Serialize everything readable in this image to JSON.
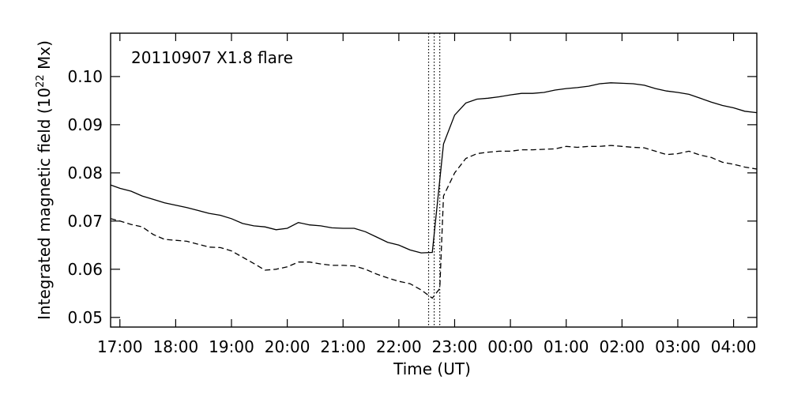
{
  "chart_data": {
    "type": "line",
    "title": "",
    "annotation": "20110907 X1.8 flare",
    "xlabel": "Time (UT)",
    "ylabel_prefix": "Integrated magnetic field (10",
    "ylabel_exp": "22",
    "ylabel_suffix": " Mx)",
    "xlim": [
      "2011-09-07 16:50",
      "2011-09-08 04:25"
    ],
    "ylim": [
      0.048,
      0.109
    ],
    "x_ticks": [
      "2011-09-07 17:00",
      "2011-09-07 18:00",
      "2011-09-07 19:00",
      "2011-09-07 20:00",
      "2011-09-07 21:00",
      "2011-09-07 22:00",
      "2011-09-07 23:00",
      "2011-09-08 00:00",
      "2011-09-08 01:00",
      "2011-09-08 02:00",
      "2011-09-08 03:00",
      "2011-09-08 04:00"
    ],
    "x_tick_labels": [
      "17:00",
      "18:00",
      "19:00",
      "20:00",
      "21:00",
      "22:00",
      "23:00",
      "00:00",
      "01:00",
      "02:00",
      "03:00",
      "04:00"
    ],
    "y_ticks": [
      0.05,
      0.06,
      0.07,
      0.08,
      0.09,
      0.1
    ],
    "y_tick_labels": [
      "0.05",
      "0.06",
      "0.07",
      "0.08",
      "0.09",
      "0.10"
    ],
    "grid": false,
    "vertical_markers": [
      "2011-09-07 22:32",
      "2011-09-07 22:38",
      "2011-09-07 22:44"
    ],
    "series": [
      {
        "style": "solid",
        "x": [
          "2011-09-07 16:50",
          "2011-09-07 17:00",
          "2011-09-07 17:12",
          "2011-09-07 17:24",
          "2011-09-07 17:36",
          "2011-09-07 17:48",
          "2011-09-07 18:00",
          "2011-09-07 18:12",
          "2011-09-07 18:24",
          "2011-09-07 18:36",
          "2011-09-07 18:48",
          "2011-09-07 19:00",
          "2011-09-07 19:12",
          "2011-09-07 19:24",
          "2011-09-07 19:36",
          "2011-09-07 19:48",
          "2011-09-07 20:00",
          "2011-09-07 20:12",
          "2011-09-07 20:24",
          "2011-09-07 20:36",
          "2011-09-07 20:48",
          "2011-09-07 21:00",
          "2011-09-07 21:12",
          "2011-09-07 21:24",
          "2011-09-07 21:36",
          "2011-09-07 21:48",
          "2011-09-07 22:00",
          "2011-09-07 22:12",
          "2011-09-07 22:24",
          "2011-09-07 22:36",
          "2011-09-07 22:48",
          "2011-09-07 23:00",
          "2011-09-07 23:12",
          "2011-09-07 23:24",
          "2011-09-07 23:36",
          "2011-09-07 23:48",
          "2011-09-08 00:00",
          "2011-09-08 00:12",
          "2011-09-08 00:24",
          "2011-09-08 00:36",
          "2011-09-08 00:48",
          "2011-09-08 01:00",
          "2011-09-08 01:12",
          "2011-09-08 01:24",
          "2011-09-08 01:36",
          "2011-09-08 01:48",
          "2011-09-08 02:00",
          "2011-09-08 02:12",
          "2011-09-08 02:24",
          "2011-09-08 02:36",
          "2011-09-08 02:48",
          "2011-09-08 03:00",
          "2011-09-08 03:12",
          "2011-09-08 03:24",
          "2011-09-08 03:36",
          "2011-09-08 03:48",
          "2011-09-08 04:00",
          "2011-09-08 04:12",
          "2011-09-08 04:25"
        ],
        "y": [
          0.0775,
          0.0768,
          0.0762,
          0.0752,
          0.0745,
          0.0738,
          0.0733,
          0.0728,
          0.0722,
          0.0716,
          0.0712,
          0.0705,
          0.0695,
          0.069,
          0.0688,
          0.0682,
          0.0685,
          0.0697,
          0.0692,
          0.069,
          0.0686,
          0.0685,
          0.0685,
          0.0678,
          0.0667,
          0.0656,
          0.065,
          0.064,
          0.0634,
          0.0635,
          0.086,
          0.092,
          0.0945,
          0.0953,
          0.0955,
          0.0958,
          0.0962,
          0.0965,
          0.0965,
          0.0967,
          0.0972,
          0.0975,
          0.0977,
          0.098,
          0.0985,
          0.0987,
          0.0986,
          0.0985,
          0.0982,
          0.0975,
          0.097,
          0.0967,
          0.0963,
          0.0955,
          0.0947,
          0.094,
          0.0935,
          0.0928,
          0.0925
        ]
      },
      {
        "style": "dashed",
        "x": [
          "2011-09-07 16:50",
          "2011-09-07 17:00",
          "2011-09-07 17:12",
          "2011-09-07 17:24",
          "2011-09-07 17:36",
          "2011-09-07 17:48",
          "2011-09-07 18:00",
          "2011-09-07 18:12",
          "2011-09-07 18:24",
          "2011-09-07 18:36",
          "2011-09-07 18:48",
          "2011-09-07 19:00",
          "2011-09-07 19:12",
          "2011-09-07 19:24",
          "2011-09-07 19:36",
          "2011-09-07 19:48",
          "2011-09-07 20:00",
          "2011-09-07 20:12",
          "2011-09-07 20:24",
          "2011-09-07 20:36",
          "2011-09-07 20:48",
          "2011-09-07 21:00",
          "2011-09-07 21:12",
          "2011-09-07 21:24",
          "2011-09-07 21:36",
          "2011-09-07 21:48",
          "2011-09-07 22:00",
          "2011-09-07 22:12",
          "2011-09-07 22:24",
          "2011-09-07 22:36",
          "2011-09-07 22:44",
          "2011-09-07 22:48",
          "2011-09-07 23:00",
          "2011-09-07 23:12",
          "2011-09-07 23:24",
          "2011-09-07 23:36",
          "2011-09-07 23:48",
          "2011-09-08 00:00",
          "2011-09-08 00:12",
          "2011-09-08 00:24",
          "2011-09-08 00:36",
          "2011-09-08 00:48",
          "2011-09-08 01:00",
          "2011-09-08 01:12",
          "2011-09-08 01:24",
          "2011-09-08 01:36",
          "2011-09-08 01:48",
          "2011-09-08 02:00",
          "2011-09-08 02:12",
          "2011-09-08 02:24",
          "2011-09-08 02:36",
          "2011-09-08 02:48",
          "2011-09-08 03:00",
          "2011-09-08 03:12",
          "2011-09-08 03:24",
          "2011-09-08 03:36",
          "2011-09-08 03:48",
          "2011-09-08 04:00",
          "2011-09-08 04:12",
          "2011-09-08 04:25"
        ],
        "y": [
          0.0705,
          0.07,
          0.0693,
          0.0688,
          0.0672,
          0.0662,
          0.066,
          0.0658,
          0.0652,
          0.0646,
          0.0645,
          0.0638,
          0.0625,
          0.0612,
          0.0598,
          0.06,
          0.0605,
          0.0615,
          0.0615,
          0.0611,
          0.0608,
          0.0608,
          0.0607,
          0.06,
          0.059,
          0.0582,
          0.0575,
          0.057,
          0.0557,
          0.054,
          0.056,
          0.0752,
          0.08,
          0.083,
          0.084,
          0.0843,
          0.0845,
          0.0845,
          0.0848,
          0.0848,
          0.0849,
          0.085,
          0.0855,
          0.0853,
          0.0855,
          0.0855,
          0.0857,
          0.0855,
          0.0853,
          0.0852,
          0.0845,
          0.0838,
          0.084,
          0.0845,
          0.0837,
          0.0832,
          0.0822,
          0.0818,
          0.0812,
          0.0808
        ]
      }
    ]
  }
}
